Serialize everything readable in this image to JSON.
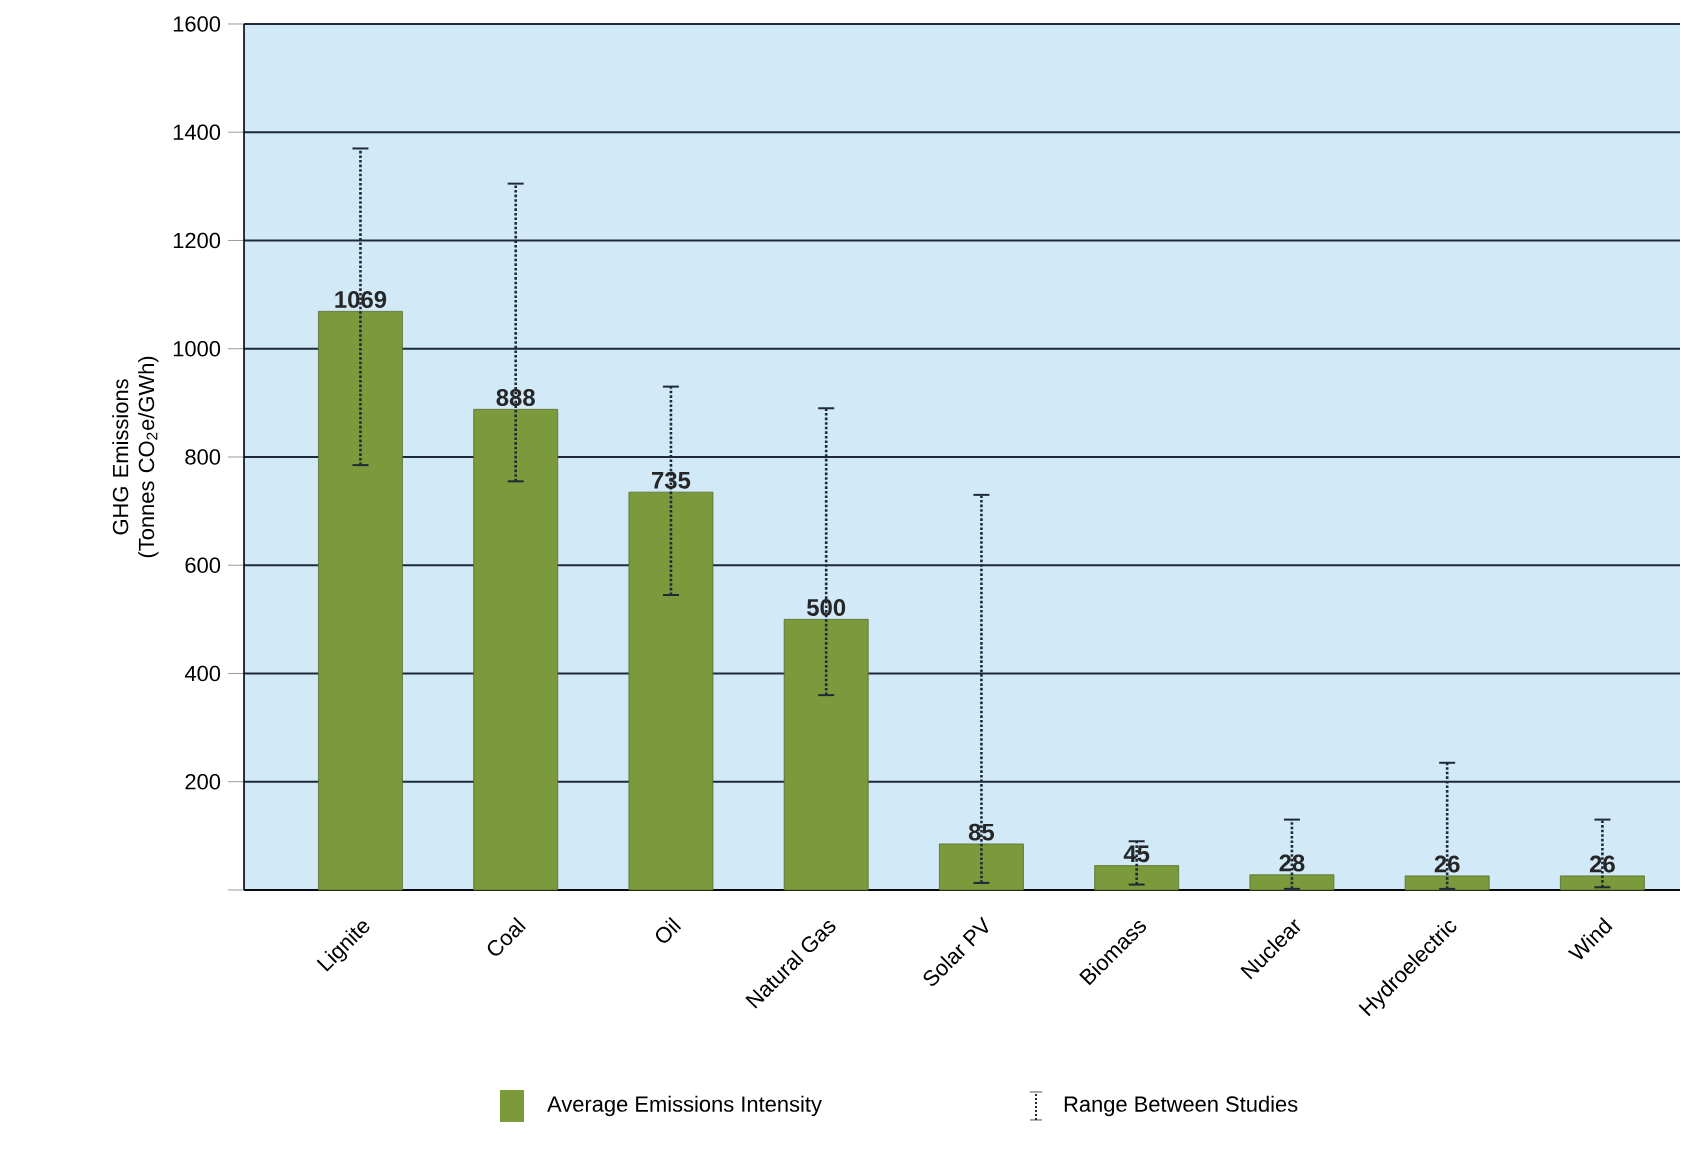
{
  "chart_data": {
    "type": "bar",
    "ylabel": "GHG Emissions (Tonnes CO$_{2}$e/GWh)",
    "categories": [
      "Lignite",
      "Coal",
      "Oil",
      "Natural Gas",
      "Solar PV",
      "Biomass",
      "Nuclear",
      "Hydroelectric",
      "Wind"
    ],
    "series": [
      {
        "name": "Average Emissions Intensity",
        "color": "#7a9a3c",
        "values": [
          1069,
          888,
          735,
          500,
          85,
          45,
          28,
          26,
          26
        ],
        "errors": [
          [
            785,
            1370
          ],
          [
            755,
            1305
          ],
          [
            545,
            930
          ],
          [
            360,
            890
          ],
          [
            13,
            730
          ],
          [
            10,
            90
          ],
          [
            2,
            130
          ],
          [
            2,
            235
          ],
          [
            5,
            130
          ]
        ]
      }
    ],
    "annotations": [
      "Range Between Studies"
    ],
    "ylim": [
      0,
      1600
    ],
    "yticks": [
      {
        "value": 0,
        "label": null
      },
      200,
      400,
      600,
      800,
      1000,
      1200,
      1400,
      1600
    ],
    "grid": "y",
    "legend": "bottom",
    "data_labels": true
  }
}
